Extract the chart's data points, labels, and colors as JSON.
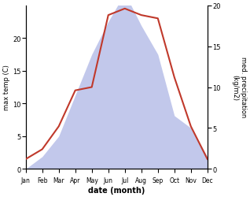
{
  "months": [
    "Jan",
    "Feb",
    "Mar",
    "Apr",
    "May",
    "Jun",
    "Jul",
    "Aug",
    "Sep",
    "Oct",
    "Nov",
    "Dec"
  ],
  "temperature": [
    1.5,
    3.0,
    6.5,
    12.0,
    12.5,
    23.5,
    24.5,
    23.5,
    23.0,
    14.0,
    6.5,
    1.5
  ],
  "precipitation": [
    0,
    1.5,
    4.0,
    9.0,
    14.0,
    18.0,
    21.5,
    17.5,
    14.0,
    6.5,
    5.0,
    1.5
  ],
  "temp_color": "#c0392b",
  "precip_fill_color": "#b8bfe8",
  "ylabel_left": "max temp (C)",
  "ylabel_right": "med. precipitation \n(kg/m2)",
  "xlabel": "date (month)",
  "ylim_left": [
    0,
    25
  ],
  "ylim_right": [
    0,
    20
  ],
  "yticks_left": [
    0,
    5,
    10,
    15,
    20
  ],
  "yticks_right": [
    0,
    5,
    10,
    15,
    20
  ],
  "bg_color": "#ffffff",
  "plot_bg_color": "#ffffff"
}
